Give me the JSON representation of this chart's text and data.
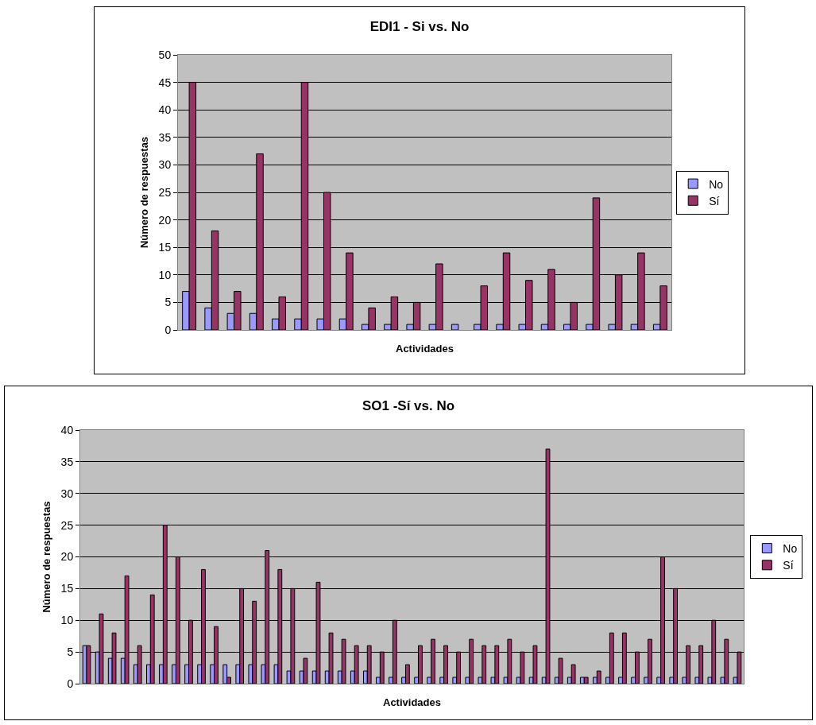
{
  "chart_data": [
    {
      "type": "bar",
      "title": "EDI1 - Si vs. No",
      "xlabel": "Actividades",
      "ylabel": "Número de respuestas",
      "categories": [
        null,
        null,
        null,
        null,
        null,
        null,
        null,
        null,
        null,
        null,
        null,
        null,
        null,
        null,
        null,
        null,
        null,
        null,
        null,
        null,
        null,
        null
      ],
      "series": [
        {
          "name": "No",
          "color": "#9999ff",
          "values": [
            7,
            4,
            3,
            3,
            2,
            2,
            2,
            2,
            1,
            1,
            1,
            1,
            1,
            1,
            1,
            1,
            1,
            1,
            1,
            1,
            1,
            1
          ]
        },
        {
          "name": "Sí",
          "color": "#993366",
          "values": [
            45,
            18,
            7,
            32,
            6,
            45,
            25,
            14,
            4,
            6,
            5,
            12,
            null,
            8,
            14,
            9,
            11,
            5,
            24,
            10,
            14,
            8
          ]
        }
      ],
      "ylim": [
        0,
        50
      ],
      "yticks": [
        0,
        5,
        10,
        15,
        20,
        25,
        30,
        35,
        40,
        45,
        50
      ],
      "grid": "y",
      "legend": "right",
      "tick_labels": "y"
    },
    {
      "type": "bar",
      "title": "SO1 -Sí vs. No",
      "xlabel": "Actividades",
      "ylabel": "Número de respuestas",
      "categories": [
        null,
        null,
        null,
        null,
        null,
        null,
        null,
        null,
        null,
        null,
        null,
        null,
        null,
        null,
        null,
        null,
        null,
        null,
        null,
        null,
        null,
        null,
        null,
        null,
        null,
        null,
        null,
        null,
        null,
        null,
        null,
        null,
        null,
        null,
        null,
        null,
        null,
        null,
        null,
        null,
        null,
        null,
        null,
        null,
        null,
        null,
        null,
        null,
        null,
        null,
        null,
        null
      ],
      "series": [
        {
          "name": "No",
          "color": "#9999ff",
          "values": [
            6,
            5,
            4,
            4,
            3,
            3,
            3,
            3,
            3,
            3,
            3,
            3,
            3,
            3,
            3,
            3,
            2,
            2,
            2,
            2,
            2,
            2,
            2,
            1,
            1,
            1,
            1,
            1,
            1,
            1,
            1,
            1,
            1,
            1,
            1,
            1,
            1,
            1,
            1,
            1,
            1,
            1,
            1,
            1,
            1,
            1,
            1,
            1,
            1,
            1,
            1,
            1
          ]
        },
        {
          "name": "Sí",
          "color": "#993366",
          "values": [
            6,
            11,
            8,
            17,
            6,
            14,
            25,
            20,
            10,
            18,
            9,
            1,
            15,
            13,
            21,
            18,
            15,
            4,
            16,
            8,
            7,
            6,
            6,
            5,
            10,
            3,
            6,
            7,
            6,
            5,
            7,
            6,
            6,
            7,
            5,
            6,
            37,
            4,
            3,
            1,
            2,
            8,
            8,
            5,
            7,
            20,
            15,
            6,
            6,
            10,
            7,
            5
          ]
        }
      ],
      "ylim": [
        0,
        40
      ],
      "yticks": [
        0,
        5,
        10,
        15,
        20,
        25,
        30,
        35,
        40
      ],
      "grid": "y",
      "legend": "right",
      "tick_labels": "y"
    }
  ]
}
